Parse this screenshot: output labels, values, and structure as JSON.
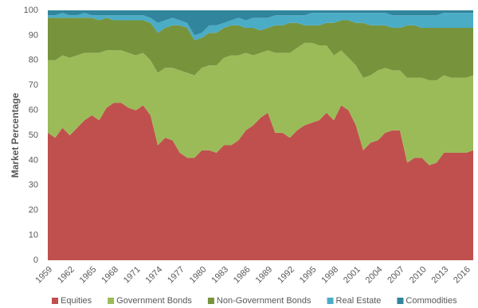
{
  "chart_data": {
    "type": "stacked_area",
    "y_label": "Market Percentage",
    "x": [
      1959,
      1960,
      1961,
      1962,
      1963,
      1964,
      1965,
      1966,
      1967,
      1968,
      1969,
      1970,
      1971,
      1972,
      1973,
      1974,
      1975,
      1976,
      1977,
      1978,
      1979,
      1980,
      1981,
      1982,
      1983,
      1984,
      1985,
      1986,
      1987,
      1988,
      1989,
      1990,
      1991,
      1992,
      1993,
      1994,
      1995,
      1996,
      1997,
      1998,
      1999,
      2000,
      2001,
      2002,
      2003,
      2004,
      2005,
      2006,
      2007,
      2008,
      2009,
      2010,
      2011,
      2012,
      2013,
      2014,
      2015,
      2016,
      2017
    ],
    "xlim": [
      1959,
      2017
    ],
    "xticks": [
      1959,
      1962,
      1965,
      1968,
      1971,
      1974,
      1977,
      1980,
      1983,
      1986,
      1989,
      1992,
      1995,
      1998,
      2001,
      2004,
      2007,
      2010,
      2013,
      2016
    ],
    "ylim": [
      0,
      100
    ],
    "yticks": [
      0,
      10,
      20,
      30,
      40,
      50,
      60,
      70,
      80,
      90,
      100
    ],
    "grid": false,
    "legend": "bottom",
    "series": [
      {
        "name": "Equities",
        "color": "#c0504d",
        "values": [
          51,
          49,
          53,
          50,
          53,
          56,
          58,
          56,
          61,
          63,
          63,
          61,
          60,
          62,
          58,
          46,
          49,
          48,
          43,
          41,
          41,
          44,
          44,
          43,
          46,
          46,
          48,
          52,
          54,
          57,
          59,
          51,
          51,
          49,
          52,
          54,
          55,
          56,
          59,
          56,
          62,
          60,
          54,
          44,
          47,
          48,
          51,
          52,
          52,
          39,
          41,
          41,
          38,
          39,
          43,
          43,
          43,
          43,
          44
        ]
      },
      {
        "name": "Government Bonds",
        "color": "#9bbb59",
        "values": [
          29,
          31,
          29,
          31,
          29,
          27,
          25,
          27,
          23,
          21,
          21,
          22,
          22,
          21,
          22,
          29,
          28,
          29,
          33,
          34,
          33,
          33,
          34,
          35,
          35,
          36,
          34,
          31,
          28,
          26,
          25,
          32,
          32,
          34,
          33,
          33,
          32,
          30,
          27,
          26,
          22,
          21,
          24,
          29,
          27,
          28,
          26,
          24,
          24,
          34,
          32,
          32,
          34,
          33,
          31,
          30,
          30,
          30,
          30
        ]
      },
      {
        "name": "Non-Government Bonds",
        "color": "#77933c",
        "values": [
          17,
          17,
          15,
          16,
          15,
          14,
          14,
          13,
          13,
          12,
          12,
          13,
          14,
          13,
          15,
          16,
          16,
          17,
          18,
          18,
          14,
          12,
          13,
          13,
          12,
          12,
          12,
          10,
          11,
          9,
          9,
          11,
          11,
          12,
          10,
          7,
          7,
          8,
          9,
          13,
          12,
          15,
          17,
          22,
          20,
          18,
          17,
          17,
          17,
          21,
          21,
          20,
          21,
          21,
          19,
          20,
          20,
          20,
          19
        ]
      },
      {
        "name": "Real Estate",
        "color": "#4bacc6",
        "values": [
          1,
          1,
          2,
          1,
          1,
          2,
          1,
          2,
          1,
          2,
          2,
          2,
          2,
          2,
          2,
          4,
          3,
          3,
          2,
          2,
          2,
          2,
          3,
          3,
          2,
          2,
          3,
          3,
          4,
          5,
          4,
          4,
          4,
          3,
          3,
          4,
          5,
          5,
          4,
          4,
          3,
          3,
          4,
          4,
          5,
          5,
          5,
          5,
          5,
          4,
          4,
          5,
          5,
          5,
          6,
          6,
          6,
          6,
          6
        ]
      },
      {
        "name": "Commodities",
        "color": "#31859c",
        "values": [
          2,
          2,
          1,
          2,
          2,
          1,
          2,
          2,
          2,
          2,
          2,
          2,
          2,
          2,
          3,
          5,
          4,
          3,
          4,
          5,
          10,
          9,
          6,
          6,
          5,
          4,
          3,
          4,
          3,
          3,
          3,
          2,
          2,
          2,
          2,
          2,
          1,
          1,
          1,
          1,
          1,
          1,
          1,
          1,
          1,
          1,
          1,
          2,
          2,
          2,
          2,
          2,
          2,
          2,
          1,
          1,
          1,
          1,
          1
        ]
      }
    ]
  }
}
